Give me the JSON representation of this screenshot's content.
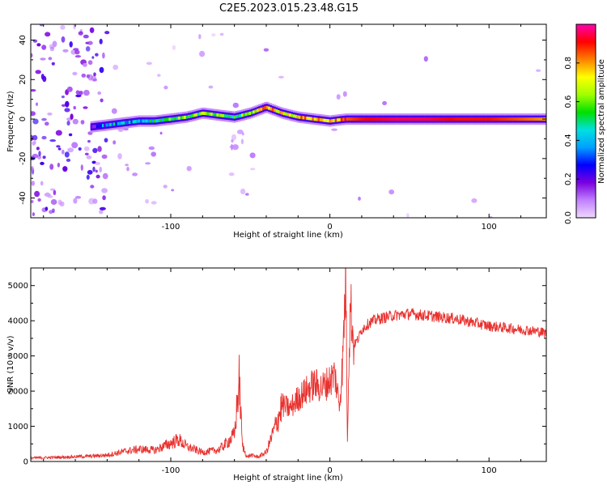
{
  "title": "C2E5.2023.015.23.48.G15",
  "chart_data": [
    {
      "type": "heatmap",
      "xlabel": "Height of straight line (km)",
      "ylabel": "Frequency (Hz)",
      "xlim": [
        -188,
        136
      ],
      "ylim": [
        -50,
        48
      ],
      "xticks": [
        -100,
        0,
        100
      ],
      "yticks": [
        -40,
        -20,
        0,
        20,
        40
      ],
      "colorbar": {
        "label": "Normalized spectral amplitude",
        "range": [
          0,
          1
        ],
        "ticks": [
          0.0,
          0.2,
          0.4,
          0.6,
          0.8
        ],
        "colors": [
          "#f0d8ff",
          "#c080ff",
          "#7a00e0",
          "#0000ff",
          "#00a0ff",
          "#00e0e0",
          "#00e000",
          "#a0ff00",
          "#ffff00",
          "#ff8000",
          "#ff0000",
          "#ff00b0"
        ]
      },
      "ridge": [
        {
          "x": -150,
          "f": -4,
          "a": 0.25
        },
        {
          "x": -140,
          "f": -3,
          "a": 0.35
        },
        {
          "x": -130,
          "f": -2,
          "a": 0.45
        },
        {
          "x": -120,
          "f": -1,
          "a": 0.4
        },
        {
          "x": -110,
          "f": -1,
          "a": 0.5
        },
        {
          "x": -100,
          "f": 0,
          "a": 0.55
        },
        {
          "x": -90,
          "f": 1,
          "a": 0.6
        },
        {
          "x": -80,
          "f": 3,
          "a": 0.6
        },
        {
          "x": -70,
          "f": 2,
          "a": 0.55
        },
        {
          "x": -60,
          "f": 1,
          "a": 0.5
        },
        {
          "x": -50,
          "f": 3,
          "a": 0.6
        },
        {
          "x": -40,
          "f": 6,
          "a": 0.85
        },
        {
          "x": -30,
          "f": 3,
          "a": 0.7
        },
        {
          "x": -20,
          "f": 1,
          "a": 0.75
        },
        {
          "x": -10,
          "f": 0,
          "a": 0.8
        },
        {
          "x": 0,
          "f": -1,
          "a": 0.75
        },
        {
          "x": 10,
          "f": 0,
          "a": 0.85
        },
        {
          "x": 20,
          "f": 0,
          "a": 0.9
        },
        {
          "x": 40,
          "f": 0,
          "a": 0.95
        },
        {
          "x": 60,
          "f": 0,
          "a": 0.95
        },
        {
          "x": 80,
          "f": 0,
          "a": 0.9
        },
        {
          "x": 100,
          "f": 0,
          "a": 0.9
        },
        {
          "x": 120,
          "f": 0,
          "a": 0.85
        },
        {
          "x": 136,
          "f": 0,
          "a": 0.8
        }
      ]
    },
    {
      "type": "line",
      "xlabel": "Height of straight line (km)",
      "ylabel": "SNR (10 * v/v)",
      "xlim": [
        -188,
        136
      ],
      "ylim": [
        0,
        5500
      ],
      "xticks": [
        -100,
        0,
        100
      ],
      "yticks": [
        0,
        1000,
        2000,
        3000,
        4000,
        5000
      ],
      "color": "#e8322f",
      "series": [
        {
          "x": [
            -188,
            -170,
            -150,
            -140,
            -130,
            -120,
            -110,
            -100,
            -95,
            -90,
            -80,
            -70,
            -65,
            -60,
            -57,
            -55,
            -52,
            -50,
            -45,
            -40,
            -35,
            -30,
            -25,
            -20,
            -15,
            -10,
            -5,
            0,
            3,
            6,
            8,
            10,
            11,
            12,
            13,
            15,
            18,
            20,
            25,
            30,
            40,
            50,
            60,
            70,
            80,
            90,
            100,
            110,
            120,
            130,
            136
          ],
          "y": [
            100,
            120,
            150,
            180,
            280,
            350,
            320,
            520,
            620,
            420,
            260,
            330,
            520,
            750,
            2300,
            450,
            120,
            180,
            130,
            260,
            900,
            1600,
            1500,
            1800,
            2000,
            2200,
            2100,
            2300,
            2500,
            1600,
            2800,
            5350,
            600,
            3100,
            4500,
            3300,
            3500,
            3750,
            3950,
            4050,
            4150,
            4200,
            4150,
            4100,
            4050,
            3950,
            3850,
            3800,
            3750,
            3700,
            3650
          ]
        }
      ]
    }
  ]
}
